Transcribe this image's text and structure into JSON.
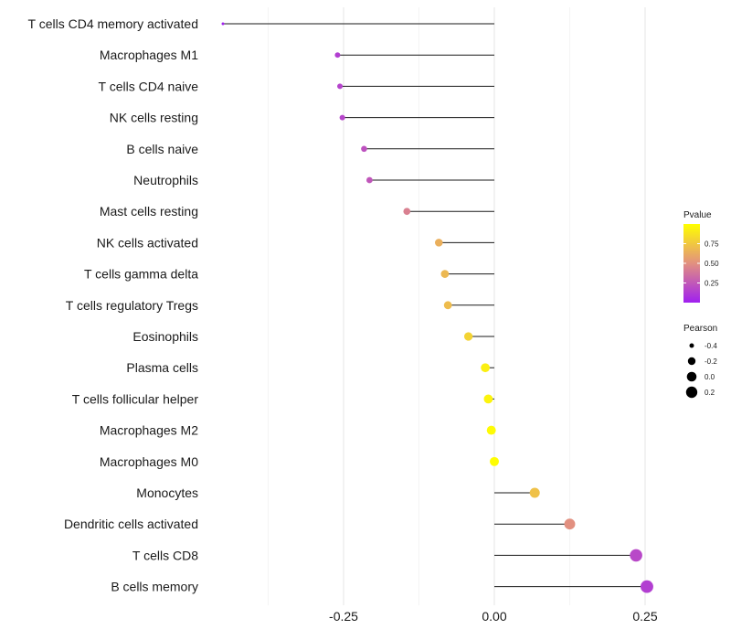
{
  "chart_data": {
    "type": "lollipop",
    "xlabel": "",
    "ylabel": "",
    "xlim": [
      -0.45,
      0.27
    ],
    "x_ticks": [
      -0.25,
      0.0,
      0.25
    ],
    "x_tick_labels": [
      "-0.25",
      "0.00",
      "0.25"
    ],
    "grid": true,
    "baseline": 0.0,
    "points": [
      {
        "label": "T cells CD4 memory activated",
        "value": -0.45,
        "pvalue": 0.01
      },
      {
        "label": "Macrophages M1",
        "value": -0.26,
        "pvalue": 0.14
      },
      {
        "label": "T cells CD4 naive",
        "value": -0.256,
        "pvalue": 0.16
      },
      {
        "label": "NK cells resting",
        "value": -0.252,
        "pvalue": 0.17
      },
      {
        "label": "B cells naive",
        "value": -0.216,
        "pvalue": 0.22
      },
      {
        "label": "Neutrophils",
        "value": -0.207,
        "pvalue": 0.24
      },
      {
        "label": "Mast cells resting",
        "value": -0.145,
        "pvalue": 0.43
      },
      {
        "label": "NK cells activated",
        "value": -0.092,
        "pvalue": 0.64
      },
      {
        "label": "T cells gamma delta",
        "value": -0.082,
        "pvalue": 0.68
      },
      {
        "label": "T cells regulatory  Tregs ",
        "value": -0.077,
        "pvalue": 0.7
      },
      {
        "label": "Eosinophils",
        "value": -0.043,
        "pvalue": 0.8
      },
      {
        "label": "Plasma cells",
        "value": -0.015,
        "pvalue": 0.93
      },
      {
        "label": "T cells follicular helper",
        "value": -0.01,
        "pvalue": 0.95
      },
      {
        "label": "Macrophages M2",
        "value": -0.005,
        "pvalue": 0.98
      },
      {
        "label": "Macrophages M0",
        "value": 0.0,
        "pvalue": 0.99
      },
      {
        "label": "Monocytes",
        "value": 0.067,
        "pvalue": 0.72
      },
      {
        "label": "Dendritic cells activated",
        "value": 0.125,
        "pvalue": 0.5
      },
      {
        "label": "T cells CD8",
        "value": 0.235,
        "pvalue": 0.18
      },
      {
        "label": "B cells memory",
        "value": 0.253,
        "pvalue": 0.14
      }
    ],
    "color_legend": {
      "title": "Pvalue",
      "ticks": [
        0.25,
        0.5,
        0.75
      ],
      "tick_labels": [
        "0.25",
        "0.50",
        "0.75"
      ],
      "range": [
        0.0,
        1.0
      ],
      "low_color": "#a020f0",
      "mid_color": "#e29080",
      "high_color": "#ffff00"
    },
    "size_legend": {
      "title": "Pearson",
      "values": [
        -0.4,
        -0.2,
        0.0,
        0.2
      ],
      "labels": [
        "-0.4",
        "-0.2",
        "0.0",
        "0.2"
      ]
    }
  }
}
